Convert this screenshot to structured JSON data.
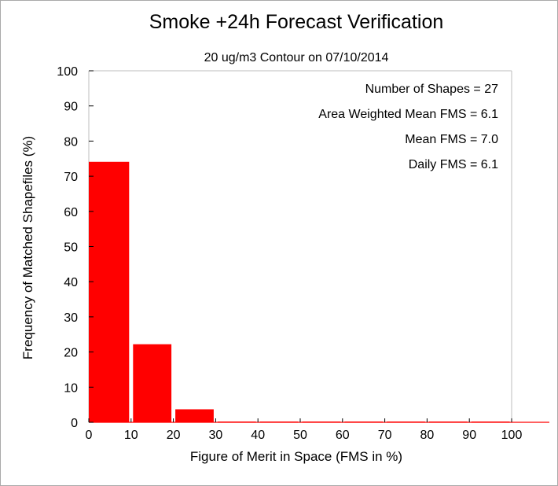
{
  "chart_data": {
    "type": "bar",
    "title": "Smoke +24h Forecast Verification",
    "subtitle": "20 ug/m3 Contour on 07/10/2014",
    "xlabel": "Figure of Merit in Space (FMS in %)",
    "ylabel": "Frequency of Matched Shapefiles (%)",
    "bin_edges": [
      0,
      10,
      20,
      30,
      40,
      50,
      60,
      70,
      80,
      90,
      100
    ],
    "values": [
      74.1,
      22.2,
      3.7,
      0,
      0,
      0,
      0,
      0,
      0,
      0
    ],
    "xlim": [
      0,
      100
    ],
    "ylim": [
      0,
      100
    ],
    "xticks": [
      "0",
      "10",
      "20",
      "30",
      "40",
      "50",
      "60",
      "70",
      "80",
      "90",
      "100"
    ],
    "yticks": [
      "0",
      "10",
      "20",
      "30",
      "40",
      "50",
      "60",
      "70",
      "80",
      "90",
      "100"
    ],
    "annotations": [
      "Number of Shapes = 27",
      "Area Weighted Mean FMS = 6.1",
      "Mean FMS = 7.0",
      "Daily FMS = 6.1"
    ],
    "bar_color": "#ff0000",
    "grid": false
  }
}
